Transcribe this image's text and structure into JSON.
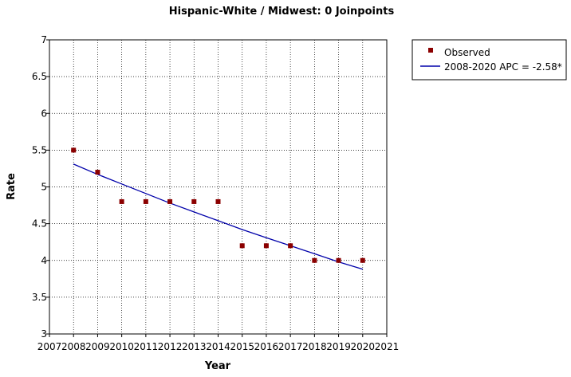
{
  "chart_data": {
    "type": "scatter",
    "title": "Hispanic-White / Midwest: 0 Joinpoints",
    "xlabel": "Year",
    "ylabel": "Rate",
    "xlim": [
      2007,
      2021
    ],
    "ylim": [
      3,
      7
    ],
    "x_ticks": [
      "2007",
      "2008",
      "2009",
      "2010",
      "2011",
      "2012",
      "2013",
      "2014",
      "2015",
      "2016",
      "2017",
      "2018",
      "2019",
      "2020",
      "2021"
    ],
    "y_ticks": [
      "3",
      "3.5",
      "4",
      "4.5",
      "5",
      "5.5",
      "6",
      "6.5",
      "7"
    ],
    "grid": true,
    "legend_position": "top-right-outside",
    "series": [
      {
        "name": "Observed",
        "kind": "markers",
        "color": "#8b0000",
        "x": [
          2008,
          2009,
          2010,
          2011,
          2012,
          2013,
          2014,
          2015,
          2016,
          2017,
          2018,
          2019,
          2020
        ],
        "y": [
          5.5,
          5.2,
          4.8,
          4.8,
          4.8,
          4.8,
          4.8,
          4.2,
          4.2,
          4.2,
          4.0,
          4.0,
          4.0
        ]
      },
      {
        "name": "2008-2020 APC  = -2.58*",
        "kind": "line",
        "color": "#0000aa",
        "x": [
          2008,
          2009,
          2010,
          2011,
          2012,
          2013,
          2014,
          2015,
          2016,
          2017,
          2018,
          2019,
          2020
        ],
        "y": [
          5.31,
          5.17,
          5.04,
          4.91,
          4.78,
          4.66,
          4.54,
          4.42,
          4.31,
          4.2,
          4.09,
          3.98,
          3.88
        ]
      }
    ]
  }
}
